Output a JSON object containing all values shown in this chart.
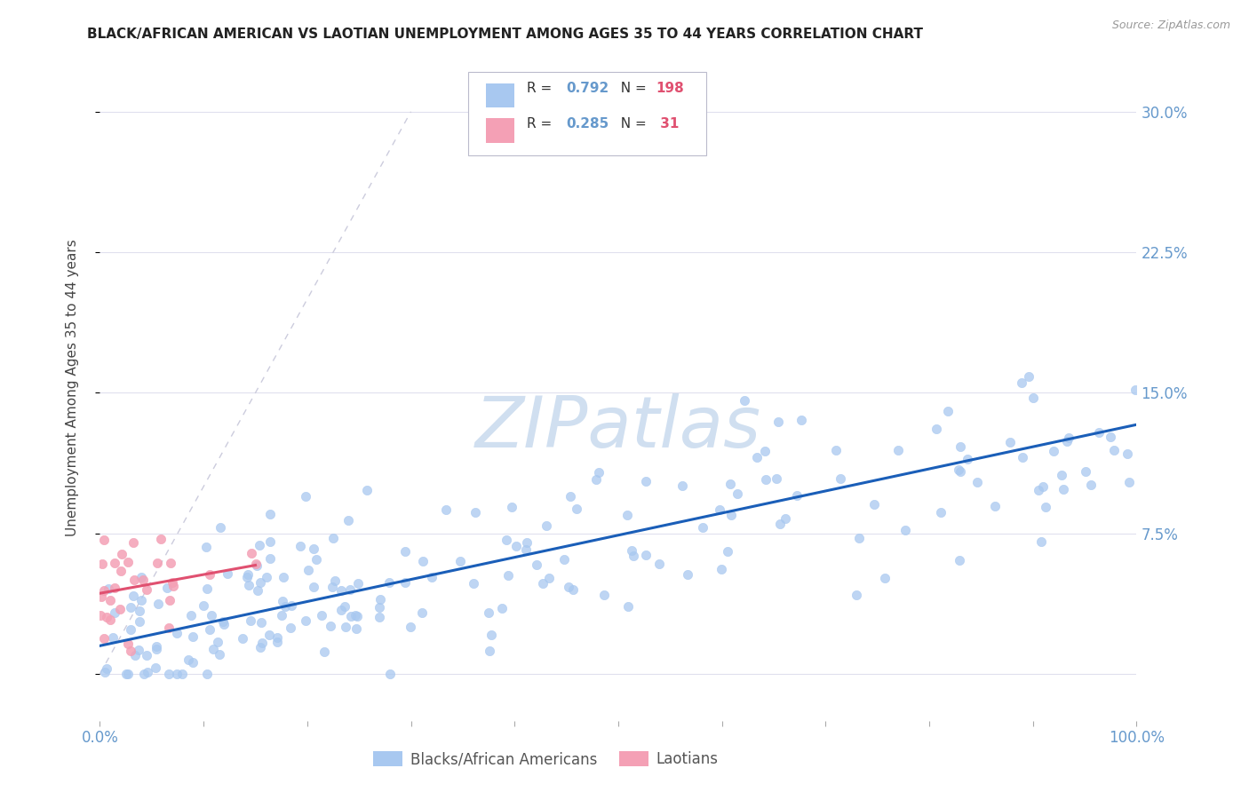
{
  "title": "BLACK/AFRICAN AMERICAN VS LAOTIAN UNEMPLOYMENT AMONG AGES 35 TO 44 YEARS CORRELATION CHART",
  "source": "Source: ZipAtlas.com",
  "ylabel": "Unemployment Among Ages 35 to 44 years",
  "xlim": [
    0.0,
    1.0
  ],
  "ylim": [
    -0.025,
    0.33
  ],
  "xticks": [
    0.0,
    0.1,
    0.2,
    0.3,
    0.4,
    0.5,
    0.6,
    0.7,
    0.8,
    0.9,
    1.0
  ],
  "xticklabels": [
    "0.0%",
    "",
    "",
    "",
    "",
    "",
    "",
    "",
    "",
    "",
    "100.0%"
  ],
  "yticks": [
    0.0,
    0.075,
    0.15,
    0.225,
    0.3
  ],
  "yticklabels": [
    "",
    "7.5%",
    "15.0%",
    "22.5%",
    "30.0%"
  ],
  "blue_R": 0.792,
  "blue_N": 198,
  "pink_R": 0.285,
  "pink_N": 31,
  "blue_color": "#a8c8f0",
  "pink_color": "#f4a0b5",
  "blue_line_color": "#1a5eb8",
  "pink_line_color": "#e05070",
  "diagonal_color": "#ccccdd",
  "grid_color": "#e0e0ee",
  "title_color": "#222222",
  "axis_label_color": "#444444",
  "tick_label_color": "#6699cc",
  "watermark_color": "#d0dff0",
  "background_color": "#ffffff",
  "blue_scatter_seed": 12,
  "pink_scatter_seed": 99,
  "blue_line_intercept": 0.015,
  "blue_line_slope": 0.118,
  "pink_line_intercept": 0.043,
  "pink_line_slope": 0.1,
  "pink_line_xmax": 0.15
}
